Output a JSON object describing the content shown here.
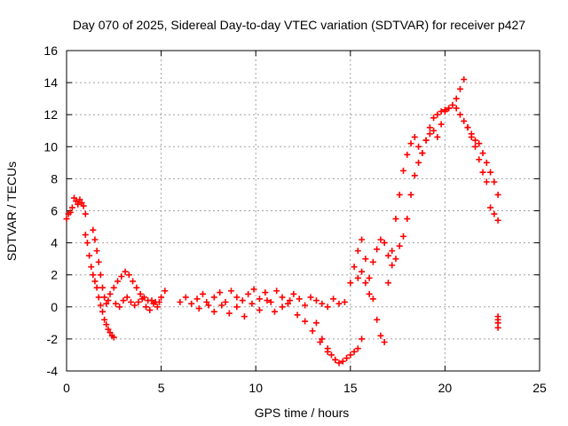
{
  "chart_data": {
    "type": "scatter",
    "title": "Day 070 of 2025, Sidereal Day-to-day VTEC variation (SDTVAR) for receiver p427",
    "xlabel": "GPS time / hours",
    "ylabel": "SDTVAR / TECUs",
    "xlim": [
      0,
      25
    ],
    "ylim": [
      -4,
      16
    ],
    "xticks": [
      0,
      5,
      10,
      15,
      20,
      25
    ],
    "yticks": [
      -4,
      -2,
      0,
      2,
      4,
      6,
      8,
      10,
      12,
      14,
      16
    ],
    "grid": true,
    "marker": "+",
    "color": "#ff0000",
    "series": [
      {
        "name": "p427",
        "x": [
          0.0,
          0.1,
          0.2,
          0.3,
          0.4,
          0.5,
          0.6,
          0.7,
          0.8,
          0.9,
          1.0,
          1.0,
          1.1,
          1.2,
          1.3,
          1.4,
          1.5,
          1.6,
          1.7,
          1.8,
          1.9,
          2.0,
          2.1,
          2.2,
          2.3,
          2.4,
          2.5,
          1.4,
          1.5,
          1.6,
          1.7,
          1.8,
          1.9,
          2.0,
          2.1,
          2.2,
          2.3,
          2.5,
          2.7,
          2.9,
          3.1,
          3.3,
          3.5,
          3.7,
          3.9,
          4.1,
          4.3,
          4.5,
          4.7,
          4.9,
          5.0,
          5.2,
          2.6,
          2.8,
          3.0,
          3.2,
          3.4,
          3.6,
          3.8,
          4.0,
          4.2,
          4.4,
          4.6,
          4.8,
          6.0,
          6.3,
          6.6,
          6.9,
          7.2,
          7.5,
          7.8,
          8.1,
          8.4,
          8.7,
          9.0,
          9.3,
          9.6,
          9.9,
          10.2,
          10.5,
          10.8,
          11.1,
          11.4,
          11.7,
          12.0,
          12.3,
          12.6,
          12.9,
          13.2,
          13.5,
          13.8,
          14.1,
          14.4,
          14.7,
          7.0,
          7.4,
          7.8,
          8.2,
          8.6,
          9.0,
          9.4,
          9.8,
          10.2,
          10.6,
          11.0,
          11.4,
          11.8,
          12.2,
          12.6,
          13.0,
          13.4,
          13.8,
          14.2,
          13.2,
          13.5,
          13.8,
          14.0,
          14.2,
          14.4,
          14.6,
          14.8,
          15.0,
          15.2,
          15.4,
          15.6,
          15.0,
          15.2,
          15.4,
          15.6,
          15.8,
          16.0,
          16.2,
          16.4,
          16.6,
          16.8,
          17.0,
          17.2,
          17.4,
          17.6,
          17.8,
          18.0,
          18.2,
          18.4,
          18.6,
          18.8,
          19.0,
          19.2,
          19.4,
          19.6,
          19.8,
          20.0,
          20.2,
          20.4,
          20.6,
          20.8,
          21.0,
          15.4,
          15.6,
          15.8,
          16.0,
          16.2,
          16.4,
          16.6,
          16.8,
          17.0,
          17.2,
          17.4,
          17.6,
          17.8,
          18.0,
          18.2,
          18.4,
          18.6,
          18.8,
          19.0,
          19.2,
          19.4,
          19.6,
          19.8,
          20.0,
          20.2,
          20.6,
          20.8,
          21.0,
          21.2,
          21.4,
          21.6,
          21.8,
          22.0,
          22.2,
          22.4,
          22.6,
          22.8,
          21.2,
          21.4,
          21.6,
          21.8,
          22.0,
          22.2,
          22.4,
          22.6,
          22.8,
          22.8,
          22.8,
          22.8,
          22.8
        ],
        "y": [
          5.5,
          5.8,
          5.9,
          6.2,
          6.8,
          6.6,
          6.4,
          6.7,
          6.5,
          6.3,
          5.8,
          4.5,
          4.0,
          3.2,
          2.5,
          2.0,
          1.6,
          1.2,
          0.6,
          0.1,
          -0.3,
          -0.8,
          -1.1,
          -1.4,
          -1.6,
          -1.8,
          -1.9,
          4.8,
          4.2,
          3.5,
          2.8,
          2.0,
          1.2,
          0.6,
          0.2,
          0.4,
          0.8,
          1.2,
          1.6,
          1.9,
          2.2,
          2.0,
          1.6,
          1.2,
          0.8,
          0.6,
          0.4,
          0.4,
          0.3,
          0.3,
          0.6,
          1.0,
          0.2,
          0.0,
          0.4,
          0.6,
          0.3,
          0.1,
          0.3,
          0.5,
          0.0,
          -0.2,
          0.2,
          0.0,
          0.3,
          0.6,
          0.2,
          0.5,
          0.8,
          0.1,
          0.6,
          0.9,
          0.3,
          1.0,
          0.6,
          0.4,
          0.8,
          1.1,
          0.5,
          0.9,
          0.3,
          1.0,
          0.6,
          0.2,
          0.8,
          0.5,
          0.1,
          0.6,
          0.4,
          0.2,
          0.0,
          0.5,
          0.2,
          0.3,
          -0.1,
          0.3,
          -0.3,
          0.1,
          -0.4,
          0.0,
          -0.6,
          0.2,
          -0.2,
          0.4,
          -0.3,
          0.0,
          0.4,
          -0.5,
          -0.9,
          -1.5,
          -2.2,
          -2.8,
          -3.3,
          -1.0,
          -2.0,
          -2.6,
          -3.0,
          -3.3,
          -3.5,
          -3.4,
          -3.2,
          -3.0,
          -2.8,
          -2.6,
          -2.0,
          1.5,
          2.5,
          3.5,
          4.2,
          3.0,
          1.8,
          0.5,
          -0.8,
          -1.8,
          -2.2,
          1.5,
          3.5,
          5.5,
          7.0,
          8.5,
          9.5,
          10.2,
          10.6,
          10.0,
          9.6,
          10.4,
          10.8,
          11.0,
          10.6,
          11.4,
          12.2,
          12.4,
          12.6,
          13.0,
          13.6,
          14.2,
          1.8,
          2.2,
          1.5,
          0.8,
          2.8,
          3.6,
          4.2,
          4.0,
          3.2,
          2.6,
          3.0,
          3.8,
          4.4,
          5.5,
          7.0,
          8.2,
          9.0,
          9.6,
          10.4,
          11.2,
          11.8,
          12.0,
          12.2,
          12.3,
          12.4,
          12.4,
          12.0,
          11.6,
          11.2,
          10.8,
          10.4,
          10.2,
          9.6,
          9.0,
          8.4,
          7.8,
          7.0,
          11.2,
          10.6,
          10.0,
          9.2,
          8.4,
          7.8,
          6.2,
          5.8,
          5.4,
          -0.6,
          -0.8,
          -1.0,
          -1.3
        ]
      }
    ]
  }
}
